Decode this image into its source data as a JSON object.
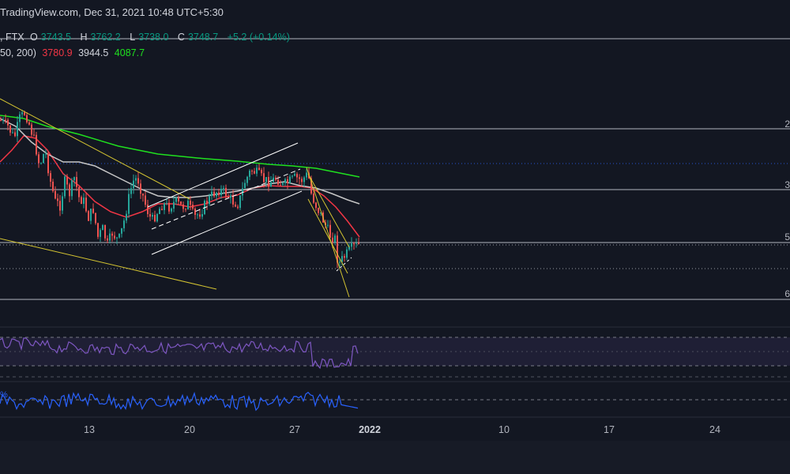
{
  "header": {
    "watermark": "TradingView.com, Dec 31, 2021 10:48 UTC+5:30",
    "exchange": ", FTX",
    "ohlc": [
      {
        "label": "O",
        "value": "3743.5"
      },
      {
        "label": "H",
        "value": "3762.2"
      },
      {
        "label": "L",
        "value": "3738.0"
      },
      {
        "label": "C",
        "value": "3748.7"
      }
    ],
    "change": "+5.2 (+0.14%)",
    "ma_label": "50, 200)",
    "ma_values": [
      {
        "value": "3780.9",
        "color": "#f23645"
      },
      {
        "value": "3944.5",
        "color": "#d1d4dc"
      },
      {
        "value": "4087.7",
        "color": "#1fe01f"
      }
    ]
  },
  "x_axis": {
    "labels": [
      "13",
      "20",
      "27",
      "2022",
      "10",
      "17",
      "24"
    ]
  },
  "right_labels": [
    "2",
    "3",
    "5",
    "6"
  ],
  "rsi_tag": "%",
  "colors": {
    "background": "#131722",
    "up": "#26a69a",
    "down": "#ef5350",
    "ma_fast": "#f23645",
    "ma_mid": "#c7c7c7",
    "ma_slow": "#1fe01f",
    "trendline": "#d4c431",
    "channel": "#ffffff",
    "rsi": "#7e57c2",
    "osc": "#2962ff"
  },
  "chart_data": {
    "type": "candlestick",
    "symbol_exchange": "FTX",
    "timeframe_span": "2021-12-09 to 2021-12-31",
    "price_range_estimate": [
      3600,
      4250
    ],
    "candle_count": 150,
    "last": {
      "open": 3743.5,
      "high": 3762.2,
      "low": 3738.0,
      "close": 3748.7,
      "change": 5.2,
      "change_pct": 0.14
    },
    "moving_averages": [
      {
        "value": 3780.9,
        "color": "red"
      },
      {
        "value": 3944.5,
        "color": "white"
      },
      {
        "value": 4087.7,
        "color": "green"
      }
    ],
    "x_ticks": [
      "13",
      "20",
      "27",
      "2022",
      "10",
      "17",
      "24"
    ],
    "grid": false,
    "panes": [
      "price",
      "rsi",
      "oscillator"
    ]
  }
}
